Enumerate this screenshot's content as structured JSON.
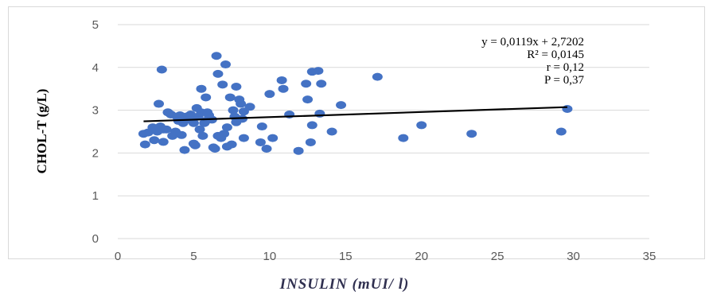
{
  "chart_data": {
    "type": "scatter",
    "xlabel": "INSULIN (mUI/ l)",
    "ylabel": "CHOL-T (g/L)",
    "xlim": [
      0,
      35
    ],
    "ylim": [
      0,
      5
    ],
    "x_ticks": [
      "0",
      "5",
      "10",
      "15",
      "20",
      "25",
      "30",
      "35"
    ],
    "y_ticks": [
      "0",
      "1",
      "2",
      "3",
      "4",
      "5"
    ],
    "grid": "horizontal",
    "marker_color": "#4472c4",
    "trendline": {
      "slope": 0.0119,
      "intercept": 2.7202,
      "x_range": [
        1.7,
        29.6
      ],
      "color": "#000000"
    },
    "annotations": [
      "y = 0,0119x + 2,7202",
      "R² = 0,0145",
      "r = 0,12",
      "P = 0,37"
    ],
    "series": [
      {
        "points": [
          [
            1.7,
            2.45
          ],
          [
            1.8,
            2.2
          ],
          [
            2.0,
            2.48
          ],
          [
            2.3,
            2.6
          ],
          [
            2.4,
            2.3
          ],
          [
            2.6,
            2.5
          ],
          [
            2.7,
            3.15
          ],
          [
            2.8,
            2.62
          ],
          [
            2.8,
            2.6
          ],
          [
            3.0,
            2.55
          ],
          [
            2.9,
            3.95
          ],
          [
            3.0,
            2.26
          ],
          [
            3.2,
            2.55
          ],
          [
            3.3,
            2.95
          ],
          [
            3.5,
            2.9
          ],
          [
            3.6,
            2.4
          ],
          [
            3.8,
            2.5
          ],
          [
            3.9,
            2.85
          ],
          [
            4.0,
            2.75
          ],
          [
            4.1,
            2.88
          ],
          [
            4.2,
            2.42
          ],
          [
            4.3,
            2.7
          ],
          [
            4.4,
            2.07
          ],
          [
            4.5,
            2.85
          ],
          [
            4.7,
            2.78
          ],
          [
            4.8,
            2.9
          ],
          [
            5.0,
            2.22
          ],
          [
            5.1,
            2.18
          ],
          [
            5.0,
            2.7
          ],
          [
            5.2,
            3.05
          ],
          [
            5.3,
            2.85
          ],
          [
            5.4,
            2.55
          ],
          [
            5.5,
            2.95
          ],
          [
            5.5,
            3.5
          ],
          [
            5.6,
            2.4
          ],
          [
            5.7,
            2.7
          ],
          [
            5.8,
            2.75
          ],
          [
            5.8,
            3.3
          ],
          [
            5.9,
            2.95
          ],
          [
            6.0,
            2.88
          ],
          [
            6.2,
            2.78
          ],
          [
            6.3,
            2.13
          ],
          [
            6.4,
            2.1
          ],
          [
            6.5,
            4.27
          ],
          [
            6.6,
            3.85
          ],
          [
            6.6,
            2.4
          ],
          [
            6.8,
            2.35
          ],
          [
            6.9,
            3.6
          ],
          [
            7.0,
            2.45
          ],
          [
            7.1,
            4.07
          ],
          [
            7.2,
            2.15
          ],
          [
            7.2,
            2.6
          ],
          [
            7.4,
            3.3
          ],
          [
            7.5,
            2.2
          ],
          [
            7.6,
            3.0
          ],
          [
            7.7,
            2.85
          ],
          [
            7.8,
            2.72
          ],
          [
            7.8,
            3.55
          ],
          [
            8.0,
            3.25
          ],
          [
            8.1,
            3.15
          ],
          [
            8.2,
            2.8
          ],
          [
            8.3,
            2.97
          ],
          [
            8.3,
            2.35
          ],
          [
            8.7,
            3.08
          ],
          [
            9.4,
            2.25
          ],
          [
            9.5,
            2.62
          ],
          [
            9.8,
            2.1
          ],
          [
            10.0,
            3.38
          ],
          [
            10.2,
            2.35
          ],
          [
            10.8,
            3.7
          ],
          [
            10.9,
            3.5
          ],
          [
            11.3,
            2.9
          ],
          [
            11.9,
            2.05
          ],
          [
            12.4,
            3.62
          ],
          [
            12.5,
            3.25
          ],
          [
            12.7,
            2.25
          ],
          [
            12.8,
            2.65
          ],
          [
            12.8,
            3.9
          ],
          [
            13.2,
            3.92
          ],
          [
            13.3,
            2.92
          ],
          [
            13.4,
            3.62
          ],
          [
            14.1,
            2.5
          ],
          [
            14.7,
            3.12
          ],
          [
            17.1,
            3.78
          ],
          [
            18.8,
            2.35
          ],
          [
            20.0,
            2.65
          ],
          [
            23.3,
            2.45
          ],
          [
            29.2,
            2.5
          ],
          [
            29.6,
            3.03
          ]
        ]
      }
    ]
  }
}
